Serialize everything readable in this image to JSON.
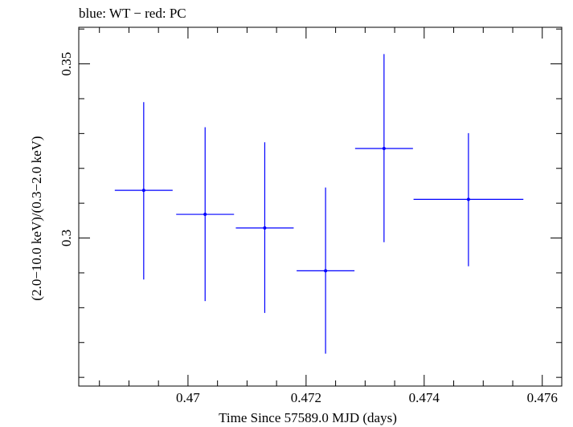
{
  "chart_data": {
    "type": "scatter",
    "title": "blue: WT − red: PC",
    "xlabel": "Time Since 57589.0 MJD (days)",
    "ylabel": "(2.0−10.0 keV)/(0.3−2.0 keV)",
    "xlim": [
      0.46815,
      0.47633
    ],
    "ylim": [
      0.2575,
      0.3605
    ],
    "x_ticks": [
      0.47,
      0.472,
      0.474,
      0.476
    ],
    "x_tick_labels": [
      "0.47",
      "0.472",
      "0.474",
      "0.476"
    ],
    "y_ticks": [
      0.3,
      0.35
    ],
    "y_tick_labels": [
      "0.3",
      "0.35"
    ],
    "grid": false,
    "series": [
      {
        "color": "#0000ff",
        "points": [
          {
            "x": 0.46925,
            "y": 0.3137,
            "xerr": 0.00049,
            "yerr_lo": 0.0256,
            "yerr_hi": 0.0253
          },
          {
            "x": 0.47029,
            "y": 0.3068,
            "xerr": 0.00049,
            "yerr_lo": 0.0249,
            "yerr_hi": 0.025
          },
          {
            "x": 0.4713,
            "y": 0.3029,
            "xerr": 0.00049,
            "yerr_lo": 0.0244,
            "yerr_hi": 0.0246
          },
          {
            "x": 0.47233,
            "y": 0.2906,
            "xerr": 0.00049,
            "yerr_lo": 0.0238,
            "yerr_hi": 0.0239
          },
          {
            "x": 0.47332,
            "y": 0.3257,
            "xerr": 0.00049,
            "yerr_lo": 0.0269,
            "yerr_hi": 0.0271
          },
          {
            "x": 0.47475,
            "y": 0.3111,
            "xerr": 0.00093,
            "yerr_lo": 0.0192,
            "yerr_hi": 0.019
          }
        ]
      }
    ]
  }
}
